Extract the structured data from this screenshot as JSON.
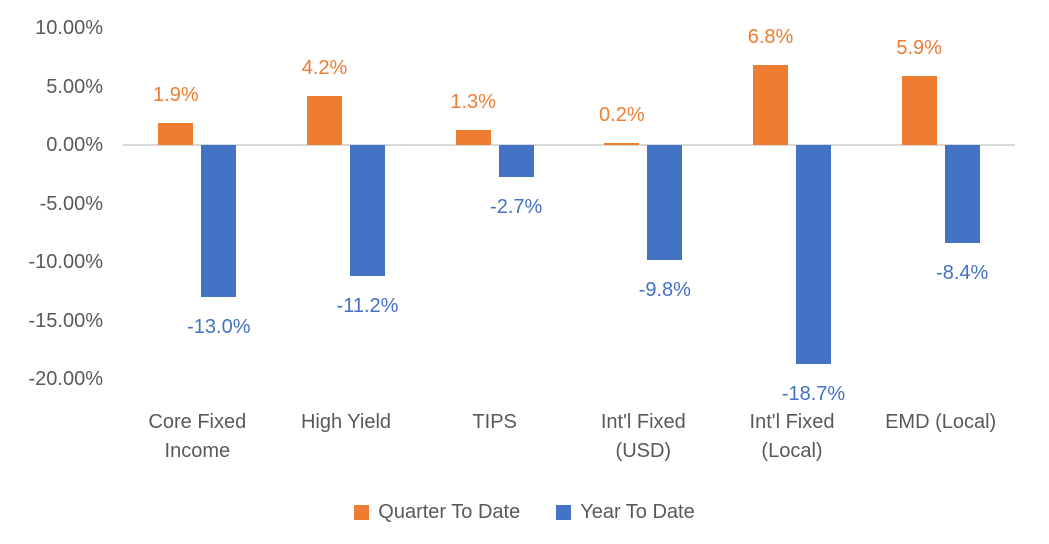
{
  "chart_data": {
    "type": "bar",
    "title": "",
    "xlabel": "",
    "ylabel": "",
    "categories": [
      "Core Fixed Income",
      "High Yield",
      "TIPS",
      "Int'l Fixed (USD)",
      "Int'l Fixed (Local)",
      "EMD (Local)"
    ],
    "category_label_lines": [
      [
        "Core Fixed",
        "Income"
      ],
      [
        "High Yield"
      ],
      [
        "TIPS"
      ],
      [
        "Int'l Fixed",
        "(USD)"
      ],
      [
        "Int'l Fixed",
        "(Local)"
      ],
      [
        "EMD (Local)"
      ]
    ],
    "series": [
      {
        "name": "Quarter To Date",
        "color": "#ED7D31",
        "values": [
          1.9,
          4.2,
          1.3,
          0.2,
          6.8,
          5.9
        ],
        "labels": [
          "1.9%",
          "4.2%",
          "1.3%",
          "0.2%",
          "6.8%",
          "5.9%"
        ]
      },
      {
        "name": "Year To Date",
        "color": "#4472C4",
        "values": [
          -13.0,
          -11.2,
          -2.7,
          -9.8,
          -18.7,
          -8.4
        ],
        "labels": [
          "-13.0%",
          "-11.2%",
          "-2.7%",
          "-9.8%",
          "-18.7%",
          "-8.4%"
        ]
      }
    ],
    "y_axis": {
      "ticks": [
        10,
        5,
        0,
        -5,
        -10,
        -15,
        -20
      ],
      "tick_labels": [
        "10.00%",
        "5.00%",
        "0.00%",
        "-5.00%",
        "-10.00%",
        "-15.00%",
        "-20.00%"
      ],
      "ylim": [
        -20,
        10
      ],
      "grid": false
    },
    "legend": {
      "position": "bottom",
      "entries": [
        "Quarter To Date",
        "Year To Date"
      ]
    },
    "colors": {
      "quarter_to_date": "#ED7D31",
      "year_to_date": "#4472C4",
      "axis_line": "#D9D9D9",
      "tick_text": "#595959"
    }
  }
}
